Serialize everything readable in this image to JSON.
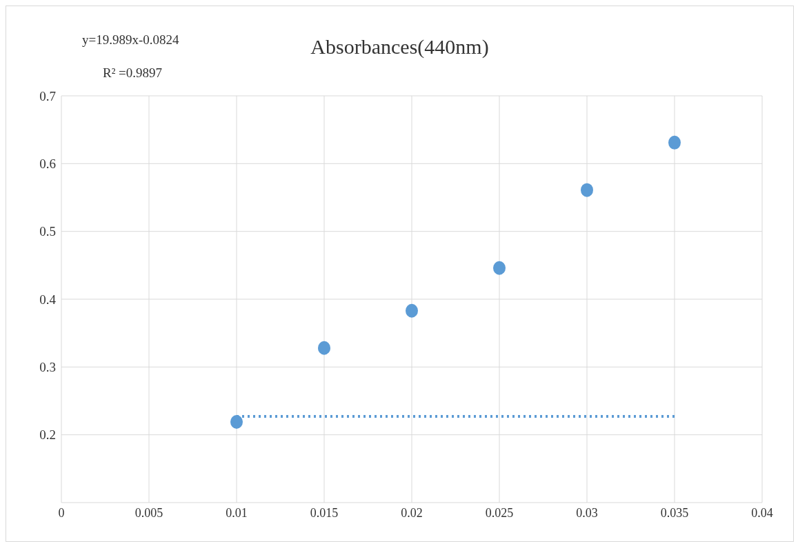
{
  "chart_data": {
    "type": "scatter",
    "title": "Absorbances(440nm)",
    "annotations": [
      "y=19.989x-0.0824",
      "R² =0.9897"
    ],
    "x": [
      0.01,
      0.015,
      0.02,
      0.025,
      0.03,
      0.035
    ],
    "series": [
      {
        "color": "#5b9bd5",
        "values": [
          0.219,
          0.328,
          0.383,
          0.446,
          0.561,
          0.631
        ]
      },
      {
        "type": "line",
        "color": "#5b9bd5",
        "line_style": "dotted",
        "marker": "none",
        "x": [
          0.01,
          0.035
        ],
        "values": [
          0.227,
          0.227
        ]
      }
    ],
    "xlim": [
      0,
      0.04
    ],
    "xticks": [
      0,
      0.005,
      0.01,
      0.015,
      0.02,
      0.025,
      0.03,
      0.035,
      0.04
    ],
    "ylim": [
      0.1,
      0.7
    ],
    "yticks": [
      0.2,
      0.3,
      0.4,
      0.5,
      0.6,
      0.7
    ],
    "grid": true,
    "marker": "circle",
    "legend": false
  }
}
